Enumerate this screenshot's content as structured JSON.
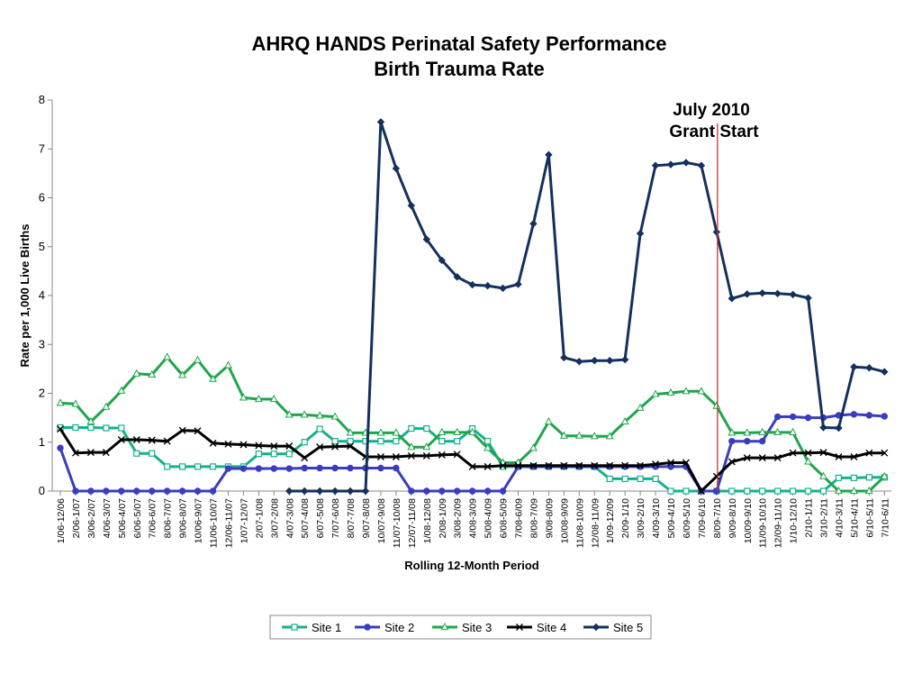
{
  "chart_data": {
    "type": "line",
    "title": [
      "AHRQ HANDS Perinatal Safety Performance",
      "Birth Trauma Rate"
    ],
    "ylabel": "Rate per 1,000 Live Births",
    "xlabel": "Rolling 12-Month Period",
    "ylim": [
      0,
      8
    ],
    "yticks": [
      "0",
      "1",
      "2",
      "3",
      "4",
      "5",
      "6",
      "7",
      "8"
    ],
    "grid": false,
    "legend_position": "bottom",
    "categories": [
      "1/06-12/06",
      "2/06-1/07",
      "3/06-2/07",
      "4/06-3/07",
      "5/06-4/07",
      "6/06-5/07",
      "7/06-6/07",
      "8/06-7/07",
      "9/06-8/07",
      "10/06-9/07",
      "11/06-10/07",
      "12/06-11/07",
      "1/07-12/07",
      "2/07-1/08",
      "3/07-2/08",
      "4/07-3/08",
      "5/07-4/08",
      "6/07-5/08",
      "7/07-6/08",
      "8/07-7/08",
      "9/07-8/08",
      "10/07-9/08",
      "11/07-10/08",
      "12/07-11/08",
      "1/08-12/08",
      "2/08-1/09",
      "3/08-2/09",
      "4/08-3/09",
      "5/08-4/09",
      "6/08-5/09",
      "7/08-6/09",
      "8/08-7/09",
      "9/08-8/09",
      "10/08-9/09",
      "11/08-10/09",
      "12/08-11/09",
      "1/09-12/09",
      "2/09-1/10",
      "3/09-2/10",
      "4/09-3/10",
      "5/09-4/10",
      "6/09-5/10",
      "7/09-6/10",
      "8/09-7/10",
      "9/09-8/10",
      "10/09-9/10",
      "11/09-10/10",
      "12/09-11/10",
      "1/10-12/10",
      "2/10-1/11",
      "3/10-2/11",
      "4/10-3/11",
      "5/10-4/11",
      "6/10-5/11",
      "7/10-6/11"
    ],
    "series": [
      {
        "name": "Site 1",
        "color": "#16b18c",
        "marker": "square",
        "values": [
          1.3,
          1.3,
          1.3,
          1.29,
          1.29,
          0.77,
          0.77,
          0.5,
          0.5,
          0.5,
          0.5,
          0.5,
          0.5,
          0.76,
          0.76,
          0.76,
          1.0,
          1.27,
          1.02,
          1.02,
          1.02,
          1.02,
          1.02,
          1.28,
          1.28,
          1.02,
          1.02,
          1.28,
          1.02,
          0.5,
          0.5,
          0.5,
          0.5,
          0.5,
          0.5,
          0.5,
          0.25,
          0.25,
          0.25,
          0.25,
          0,
          0,
          0,
          0,
          0,
          0,
          0,
          0,
          0,
          0,
          0,
          0.27,
          0.27,
          0.28,
          0.28
        ]
      },
      {
        "name": "Site 2",
        "color": "#3a3dbf",
        "marker": "circle",
        "values": [
          0.88,
          0,
          0,
          0,
          0,
          0,
          0,
          0,
          0,
          0,
          0,
          0.46,
          0.46,
          0.46,
          0.46,
          0.46,
          0.47,
          0.47,
          0.47,
          0.47,
          0.47,
          0.47,
          0.47,
          0,
          0,
          0,
          0,
          0,
          0,
          0,
          0.5,
          0.5,
          0.5,
          0.5,
          0.5,
          0.5,
          0.5,
          0.5,
          0.5,
          0.5,
          0.5,
          0.5,
          0,
          0,
          1.02,
          1.02,
          1.02,
          1.52,
          1.52,
          1.5,
          1.5,
          1.55,
          1.57,
          1.55,
          1.53
        ]
      },
      {
        "name": "Site 3",
        "color": "#1fa64a",
        "marker": "triangle",
        "values": [
          1.8,
          1.78,
          1.42,
          1.72,
          2.05,
          2.4,
          2.38,
          2.74,
          2.37,
          2.68,
          2.29,
          2.57,
          1.91,
          1.88,
          1.88,
          1.56,
          1.56,
          1.54,
          1.52,
          1.19,
          1.19,
          1.19,
          1.19,
          0.9,
          0.9,
          1.2,
          1.2,
          1.2,
          0.88,
          0.58,
          0.58,
          0.88,
          1.42,
          1.13,
          1.13,
          1.12,
          1.12,
          1.42,
          1.7,
          1.98,
          2.01,
          2.04,
          2.04,
          1.74,
          1.19,
          1.19,
          1.2,
          1.2,
          1.2,
          0.6,
          0.3,
          0,
          0,
          0,
          0.3
        ]
      },
      {
        "name": "Site 4",
        "color": "#000000",
        "marker": "x",
        "values": [
          1.27,
          0.78,
          0.79,
          0.79,
          1.05,
          1.05,
          1.04,
          1.02,
          1.24,
          1.23,
          0.98,
          0.96,
          0.95,
          0.93,
          0.92,
          0.92,
          0.68,
          0.9,
          0.91,
          0.92,
          0.7,
          0.7,
          0.7,
          0.72,
          0.72,
          0.74,
          0.75,
          0.5,
          0.5,
          0.52,
          0.52,
          0.52,
          0.52,
          0.52,
          0.52,
          0.52,
          0.52,
          0.52,
          0.52,
          0.55,
          0.58,
          0.58,
          0,
          0.3,
          0.6,
          0.68,
          0.68,
          0.68,
          0.78,
          0.78,
          0.79,
          0.7,
          0.7,
          0.78,
          0.78
        ]
      },
      {
        "name": "Site 5",
        "color": "#13315c",
        "marker": "diamond",
        "values": [
          null,
          null,
          null,
          null,
          null,
          null,
          null,
          null,
          null,
          null,
          null,
          null,
          null,
          null,
          null,
          0,
          0,
          0,
          0,
          0,
          0,
          7.55,
          6.6,
          5.84,
          5.15,
          4.72,
          4.38,
          4.22,
          4.2,
          4.15,
          4.23,
          5.47,
          6.88,
          2.73,
          2.65,
          2.67,
          2.67,
          2.69,
          5.27,
          6.66,
          6.68,
          6.72,
          6.66,
          5.3,
          3.94,
          4.03,
          4.05,
          4.04,
          4.02,
          3.95,
          1.3,
          1.29,
          2.54,
          2.52,
          2.44
        ]
      }
    ],
    "annotation": {
      "lines": [
        "July 2010",
        "Grant Start"
      ],
      "at_category": "8/09-7/10",
      "line_color": "#c0392b"
    }
  }
}
